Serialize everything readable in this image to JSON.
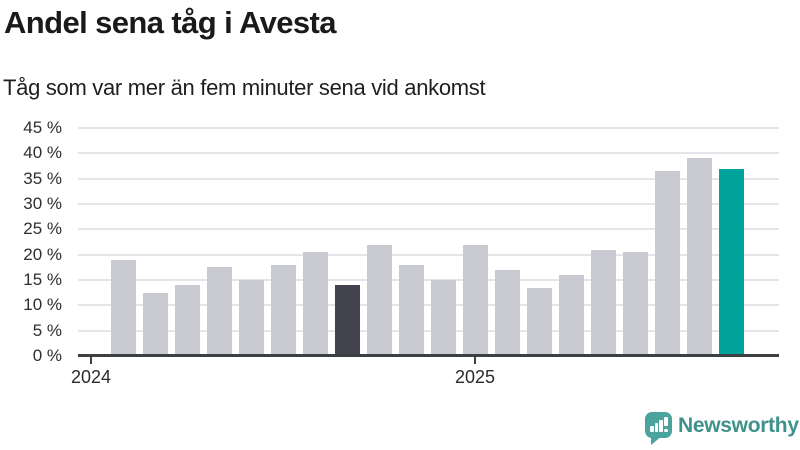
{
  "header": {
    "title": "Andel sena tåg i Avesta",
    "subtitle": "Tåg som var mer än fem minuter sena vid ankomst"
  },
  "chart_data": {
    "type": "bar",
    "title": "Andel sena tåg i Avesta",
    "subtitle": "Tåg som var mer än fem minuter sena vid ankomst",
    "unit": "percent",
    "ylim": [
      0,
      45
    ],
    "y_ticks": [
      0,
      5,
      10,
      15,
      20,
      25,
      30,
      35,
      40,
      45
    ],
    "y_tick_suffix": " %",
    "grid": true,
    "legend": "none",
    "x_ticks": [
      {
        "label": "2024",
        "month": "2024-01"
      },
      {
        "label": "2025",
        "month": "2025-01"
      }
    ],
    "bars": [
      {
        "month": "2024-02",
        "value": 19,
        "style": "default"
      },
      {
        "month": "2024-03",
        "value": 12.5,
        "style": "default"
      },
      {
        "month": "2024-04",
        "value": 14,
        "style": "default"
      },
      {
        "month": "2024-05",
        "value": 17.5,
        "style": "default"
      },
      {
        "month": "2024-06",
        "value": 15,
        "style": "default"
      },
      {
        "month": "2024-07",
        "value": 18,
        "style": "default"
      },
      {
        "month": "2024-08",
        "value": 20.5,
        "style": "default"
      },
      {
        "month": "2024-09",
        "value": 14,
        "style": "highlight-dark"
      },
      {
        "month": "2024-10",
        "value": 22,
        "style": "default"
      },
      {
        "month": "2024-11",
        "value": 18,
        "style": "default"
      },
      {
        "month": "2024-12",
        "value": 15,
        "style": "default"
      },
      {
        "month": "2025-01",
        "value": 22,
        "style": "default"
      },
      {
        "month": "2025-02",
        "value": 17,
        "style": "default"
      },
      {
        "month": "2025-03",
        "value": 13.5,
        "style": "default"
      },
      {
        "month": "2025-04",
        "value": 16,
        "style": "default"
      },
      {
        "month": "2025-05",
        "value": 21,
        "style": "default"
      },
      {
        "month": "2025-06",
        "value": 20.5,
        "style": "default"
      },
      {
        "month": "2025-07",
        "value": 36.5,
        "style": "default"
      },
      {
        "month": "2025-08",
        "value": 39,
        "style": "default"
      },
      {
        "month": "2025-09",
        "value": 37,
        "style": "highlight-teal"
      }
    ],
    "colors": {
      "default": "#c9c9d1",
      "highlight-dark": "#42434e",
      "highlight-teal": "#00a49a",
      "axis": "#3d4043",
      "gridline": "#e5e5e9"
    }
  },
  "branding": {
    "wordmark": "Newsworthy",
    "icon": "newsworthy-bar-chart-speech-bubble-icon",
    "icon_color": "#4aa39d",
    "wordmark_color": "#3f918b"
  }
}
